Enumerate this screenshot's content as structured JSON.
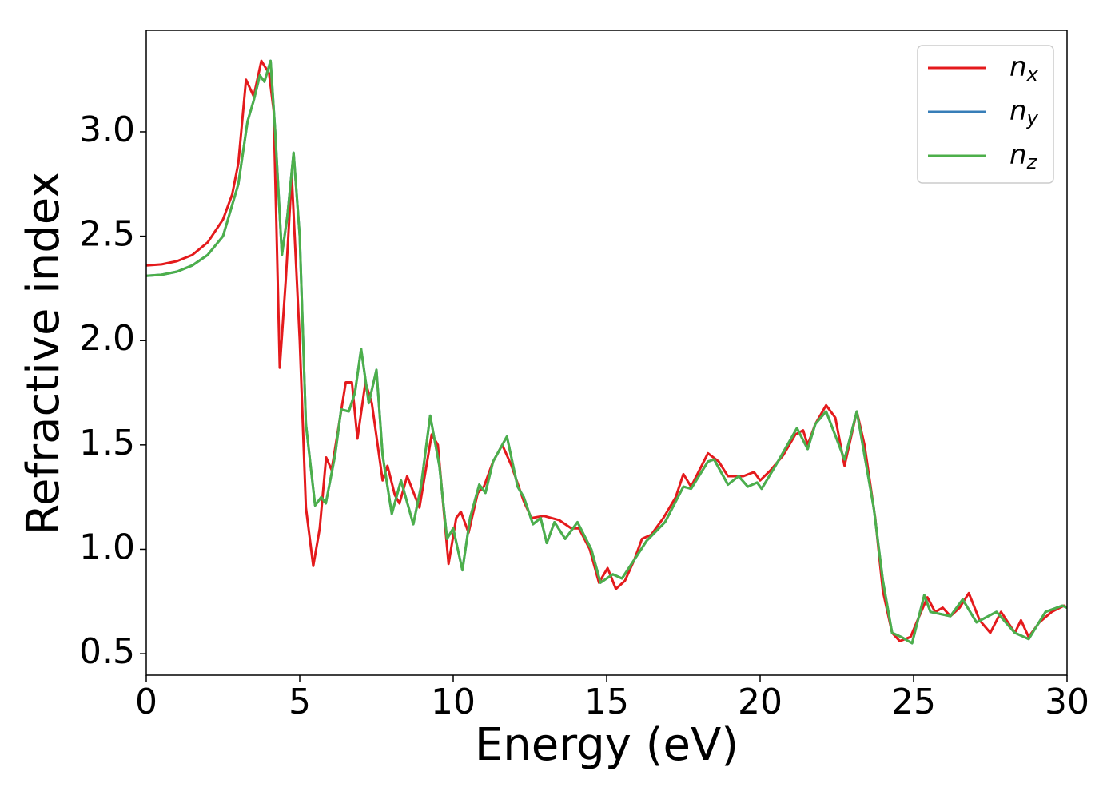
{
  "chart_data": {
    "type": "line",
    "xlabel": "Energy (eV)",
    "ylabel": "Refractive index",
    "xlim": [
      0,
      30
    ],
    "ylim": [
      0.397,
      3.486
    ],
    "xticks": [
      0,
      5,
      10,
      15,
      20,
      25,
      30
    ],
    "yticks": [
      0.5,
      {
        "value": 1.0,
        "label": "1.0"
      },
      1.5,
      {
        "value": 2.0,
        "label": "2.0"
      },
      2.5,
      {
        "value": 3.0,
        "label": "3.0"
      }
    ],
    "legend": "upper right",
    "series": [
      {
        "name": "n_x",
        "color": "#e41a1c",
        "x": [
          0,
          0.5,
          1,
          1.5,
          2,
          2.5,
          2.8,
          3.0,
          3.25,
          3.5,
          3.75,
          4.0,
          4.15,
          4.35,
          4.55,
          4.74,
          5.0,
          5.2,
          5.44,
          5.65,
          5.86,
          6.04,
          6.5,
          6.7,
          6.88,
          7.14,
          7.35,
          7.7,
          7.86,
          8.1,
          8.25,
          8.5,
          8.9,
          9.3,
          9.5,
          9.85,
          10.1,
          10.25,
          10.5,
          10.8,
          11.0,
          11.3,
          11.6,
          11.9,
          12.3,
          12.55,
          12.95,
          13.45,
          13.85,
          14.1,
          14.45,
          14.75,
          15.03,
          15.3,
          15.6,
          15.9,
          16.15,
          16.45,
          16.85,
          17.25,
          17.5,
          17.75,
          18.3,
          18.65,
          18.95,
          19.45,
          19.8,
          20.0,
          20.35,
          20.75,
          21.15,
          21.4,
          21.55,
          21.8,
          22.15,
          22.45,
          22.75,
          23.15,
          23.4,
          23.75,
          24.0,
          24.3,
          24.55,
          24.9,
          25.1,
          25.45,
          25.7,
          25.95,
          26.2,
          26.5,
          26.8,
          27.15,
          27.5,
          27.85,
          28.3,
          28.5,
          28.75,
          29.1,
          29.5,
          29.9,
          30
        ],
        "values": [
          2.36,
          2.365,
          2.38,
          2.41,
          2.47,
          2.58,
          2.7,
          2.85,
          3.25,
          3.17,
          3.34,
          3.28,
          3.1,
          1.87,
          2.3,
          2.79,
          2.0,
          1.2,
          0.92,
          1.1,
          1.44,
          1.38,
          1.8,
          1.8,
          1.53,
          1.8,
          1.7,
          1.33,
          1.4,
          1.26,
          1.22,
          1.35,
          1.2,
          1.55,
          1.5,
          0.93,
          1.15,
          1.18,
          1.08,
          1.27,
          1.3,
          1.42,
          1.5,
          1.4,
          1.23,
          1.15,
          1.16,
          1.14,
          1.1,
          1.1,
          1.0,
          0.84,
          0.91,
          0.81,
          0.85,
          0.95,
          1.05,
          1.07,
          1.15,
          1.25,
          1.36,
          1.3,
          1.46,
          1.42,
          1.35,
          1.35,
          1.37,
          1.33,
          1.38,
          1.45,
          1.55,
          1.57,
          1.5,
          1.6,
          1.69,
          1.63,
          1.4,
          1.66,
          1.5,
          1.15,
          0.8,
          0.6,
          0.56,
          0.58,
          0.65,
          0.77,
          0.7,
          0.72,
          0.68,
          0.72,
          0.79,
          0.66,
          0.6,
          0.7,
          0.6,
          0.66,
          0.58,
          0.65,
          0.7,
          0.73,
          0.72
        ]
      },
      {
        "name": "n_y",
        "color": "#377eb8",
        "x": [
          0,
          0.5,
          1,
          1.5,
          2,
          2.5,
          3.0,
          3.3,
          3.5,
          3.7,
          3.85,
          4.05,
          4.2,
          4.42,
          4.6,
          4.8,
          5.0,
          5.2,
          5.5,
          5.7,
          5.85,
          6.15,
          6.35,
          6.6,
          6.8,
          7.0,
          7.25,
          7.5,
          7.7,
          8.0,
          8.3,
          8.7,
          8.95,
          9.25,
          9.55,
          9.8,
          10.0,
          10.3,
          10.55,
          10.85,
          11.05,
          11.3,
          11.75,
          12.1,
          12.3,
          12.6,
          12.85,
          13.05,
          13.3,
          13.65,
          14.05,
          14.5,
          14.8,
          15.2,
          15.5,
          15.9,
          16.3,
          16.9,
          17.5,
          17.75,
          18.3,
          18.5,
          18.95,
          19.3,
          19.6,
          19.9,
          20.05,
          20.5,
          21.2,
          21.55,
          21.8,
          22.15,
          22.75,
          23.15,
          23.7,
          24.0,
          24.3,
          24.6,
          24.95,
          25.35,
          25.55,
          26.2,
          26.6,
          27.05,
          27.7,
          28.3,
          28.75,
          29.3,
          29.85,
          30
        ],
        "values": [
          2.31,
          2.315,
          2.33,
          2.36,
          2.41,
          2.5,
          2.75,
          3.05,
          3.15,
          3.27,
          3.24,
          3.34,
          3.0,
          2.41,
          2.6,
          2.9,
          2.5,
          1.6,
          1.21,
          1.25,
          1.22,
          1.45,
          1.67,
          1.66,
          1.75,
          1.96,
          1.7,
          1.86,
          1.45,
          1.17,
          1.33,
          1.12,
          1.3,
          1.64,
          1.4,
          1.05,
          1.1,
          0.9,
          1.15,
          1.31,
          1.27,
          1.42,
          1.54,
          1.3,
          1.25,
          1.12,
          1.15,
          1.03,
          1.13,
          1.05,
          1.13,
          1.0,
          0.84,
          0.88,
          0.86,
          0.95,
          1.04,
          1.13,
          1.3,
          1.29,
          1.42,
          1.43,
          1.31,
          1.35,
          1.3,
          1.32,
          1.29,
          1.4,
          1.58,
          1.48,
          1.6,
          1.66,
          1.43,
          1.66,
          1.2,
          0.85,
          0.6,
          0.58,
          0.55,
          0.78,
          0.7,
          0.68,
          0.76,
          0.65,
          0.7,
          0.6,
          0.57,
          0.7,
          0.73,
          0.72
        ]
      },
      {
        "name": "n_z",
        "color": "#4daf4a",
        "x": [
          0,
          0.5,
          1,
          1.5,
          2,
          2.5,
          3.0,
          3.3,
          3.5,
          3.7,
          3.85,
          4.05,
          4.2,
          4.42,
          4.6,
          4.8,
          5.0,
          5.2,
          5.5,
          5.7,
          5.85,
          6.15,
          6.35,
          6.6,
          6.8,
          7.0,
          7.25,
          7.5,
          7.7,
          8.0,
          8.3,
          8.7,
          8.95,
          9.25,
          9.55,
          9.8,
          10.0,
          10.3,
          10.55,
          10.85,
          11.05,
          11.3,
          11.75,
          12.1,
          12.3,
          12.6,
          12.85,
          13.05,
          13.3,
          13.65,
          14.05,
          14.5,
          14.8,
          15.2,
          15.5,
          15.9,
          16.3,
          16.9,
          17.5,
          17.75,
          18.3,
          18.5,
          18.95,
          19.3,
          19.6,
          19.9,
          20.05,
          20.5,
          21.2,
          21.55,
          21.8,
          22.15,
          22.75,
          23.15,
          23.7,
          24.0,
          24.3,
          24.6,
          24.95,
          25.35,
          25.55,
          26.2,
          26.6,
          27.05,
          27.7,
          28.3,
          28.75,
          29.3,
          29.85,
          30
        ],
        "values": [
          2.31,
          2.315,
          2.33,
          2.36,
          2.41,
          2.5,
          2.75,
          3.05,
          3.15,
          3.27,
          3.24,
          3.34,
          3.0,
          2.41,
          2.6,
          2.9,
          2.5,
          1.6,
          1.21,
          1.25,
          1.22,
          1.45,
          1.67,
          1.66,
          1.75,
          1.96,
          1.7,
          1.86,
          1.45,
          1.17,
          1.33,
          1.12,
          1.3,
          1.64,
          1.4,
          1.05,
          1.1,
          0.9,
          1.15,
          1.31,
          1.27,
          1.42,
          1.54,
          1.3,
          1.25,
          1.12,
          1.15,
          1.03,
          1.13,
          1.05,
          1.13,
          1.0,
          0.84,
          0.88,
          0.86,
          0.95,
          1.04,
          1.13,
          1.3,
          1.29,
          1.42,
          1.43,
          1.31,
          1.35,
          1.3,
          1.32,
          1.29,
          1.4,
          1.58,
          1.48,
          1.6,
          1.66,
          1.43,
          1.66,
          1.2,
          0.85,
          0.6,
          0.58,
          0.55,
          0.78,
          0.7,
          0.68,
          0.76,
          0.65,
          0.7,
          0.6,
          0.57,
          0.7,
          0.73,
          0.72
        ]
      }
    ]
  }
}
